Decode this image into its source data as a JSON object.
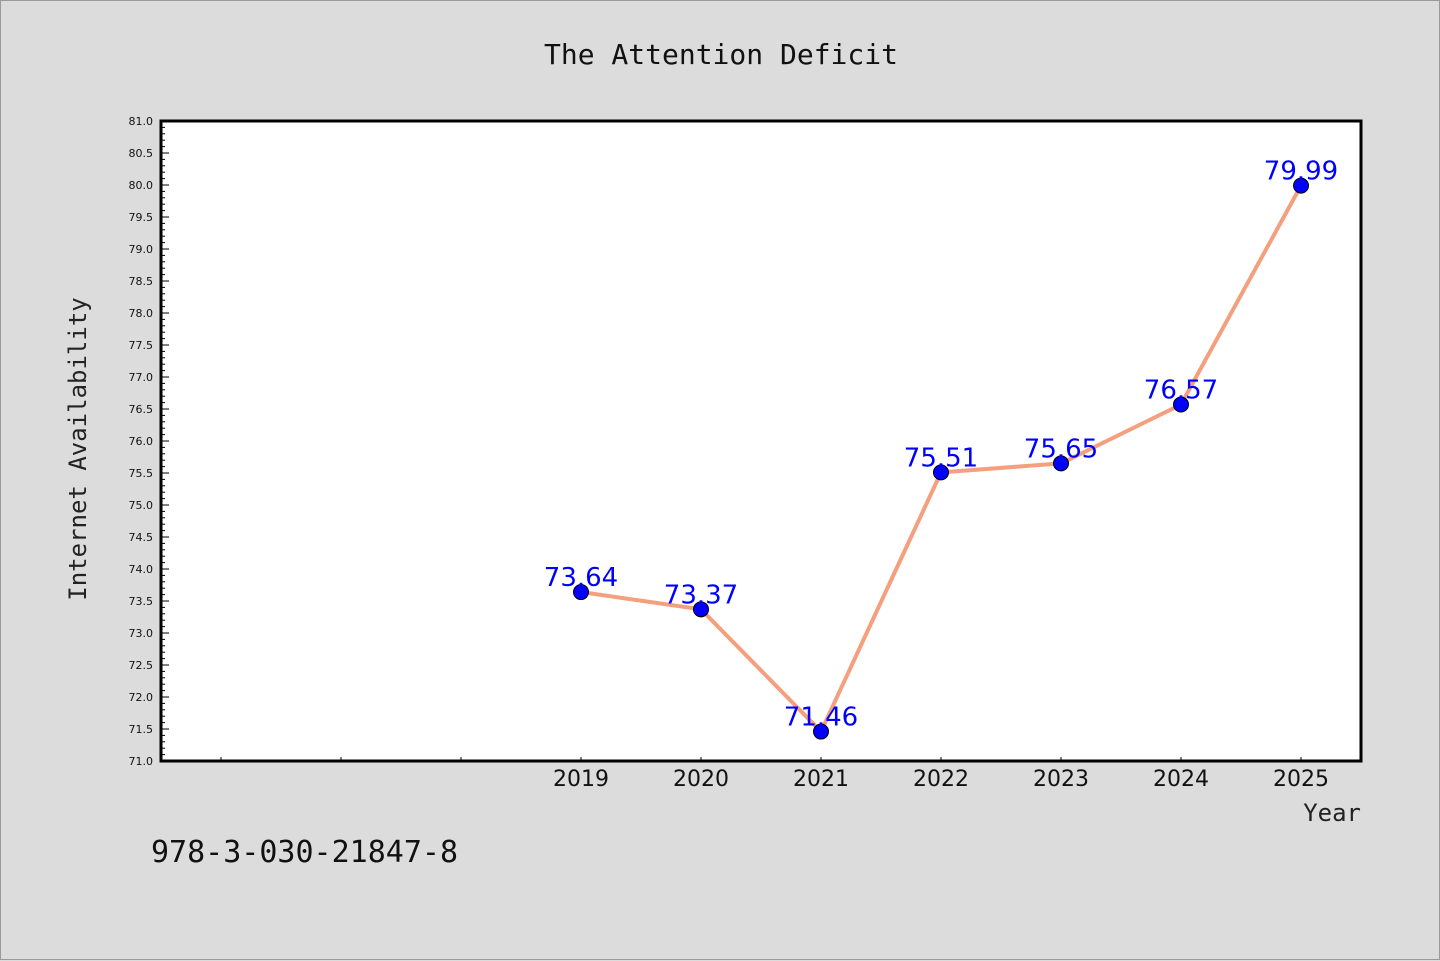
{
  "chart_data": {
    "type": "line",
    "title": "The Attention Deficit",
    "xlabel": "Year",
    "ylabel": "Internet Availability",
    "x": [
      2019,
      2020,
      2021,
      2022,
      2023,
      2024,
      2025
    ],
    "x_tick_labels": [
      "2019",
      "2020",
      "2021",
      "2022",
      "2023",
      "2024",
      "2025"
    ],
    "series": [
      {
        "values": [
          73.64,
          73.37,
          71.46,
          75.51,
          75.65,
          76.57,
          79.99
        ],
        "labels": [
          "73.64",
          "73.37",
          "71.46",
          "75.51",
          "75.65",
          "76.57",
          "79.99"
        ],
        "line_color": "#f4a07e",
        "marker_color": "#0000ff"
      }
    ],
    "ylim": [
      71.0,
      81.0
    ],
    "y_tick_labels": [
      "71.0",
      "71.5",
      "72.0",
      "72.5",
      "73.0",
      "73.5",
      "74.0",
      "74.5",
      "75.0",
      "75.5",
      "76.0",
      "76.5",
      "77.0",
      "77.5",
      "78.0",
      "78.5",
      "79.0",
      "79.5",
      "80.0",
      "80.5",
      "81.0"
    ],
    "xlim": [
      2015.5,
      2025.5
    ],
    "grid": false,
    "background": "#dcdcdc",
    "plot_background": "#ffffff"
  },
  "annotation": "978-3-030-21847-8"
}
